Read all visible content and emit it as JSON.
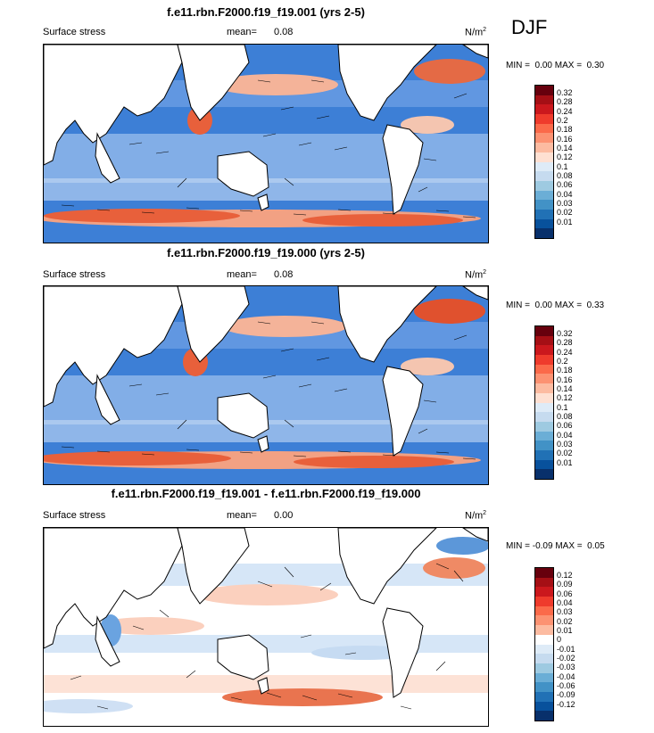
{
  "season": "DJF",
  "panels": [
    {
      "title": "f.e11.rbn.F2000.f19_f19.001 (yrs 2-5)",
      "variable": "Surface stress",
      "mean_label": "mean=",
      "mean": "0.08",
      "units": "N/m",
      "units_sup": "2",
      "min_label": "MIN =",
      "min": "0.00",
      "max_label": "MAX =",
      "max": "0.30",
      "colorbar_levels": [
        "0.32",
        "0.28",
        "0.24",
        "0.2",
        "0.18",
        "0.16",
        "0.14",
        "0.12",
        "0.1",
        "0.08",
        "0.06",
        "0.04",
        "0.03",
        "0.02",
        "0.01"
      ]
    },
    {
      "title": "f.e11.rbn.F2000.f19_f19.000 (yrs 2-5)",
      "variable": "Surface stress",
      "mean_label": "mean=",
      "mean": "0.08",
      "units": "N/m",
      "units_sup": "2",
      "min_label": "MIN =",
      "min": "0.00",
      "max_label": "MAX =",
      "max": "0.33",
      "colorbar_levels": [
        "0.32",
        "0.28",
        "0.24",
        "0.2",
        "0.18",
        "0.16",
        "0.14",
        "0.12",
        "0.1",
        "0.08",
        "0.06",
        "0.04",
        "0.03",
        "0.02",
        "0.01"
      ]
    },
    {
      "title": "f.e11.rbn.F2000.f19_f19.001 - f.e11.rbn.F2000.f19_f19.000",
      "variable": "Surface stress",
      "mean_label": "mean=",
      "mean": "0.00",
      "units": "N/m",
      "units_sup": "2",
      "min_label": "MIN =",
      "min": "-0.09",
      "max_label": "MAX =",
      "max": "0.05",
      "colorbar_levels": [
        "0.12",
        "0.09",
        "0.06",
        "0.04",
        "0.03",
        "0.02",
        "0.01",
        "0",
        "-0.01",
        "-0.02",
        "-0.03",
        "-0.04",
        "-0.06",
        "-0.09",
        "-0.12"
      ]
    }
  ],
  "colors": {
    "seq_scale": [
      "#67000d",
      "#a50f15",
      "#cb181d",
      "#ef3b2c",
      "#fb6a4a",
      "#fc9272",
      "#fcbba1",
      "#fee0d2",
      "#deebf7",
      "#c6dbef",
      "#9ecae1",
      "#6baed6",
      "#4292c6",
      "#2171b5",
      "#08519c",
      "#08306b"
    ],
    "diff_scale": [
      "#67000d",
      "#a50f15",
      "#cb181d",
      "#ef3b2c",
      "#fb6a4a",
      "#fc9272",
      "#fcbba1",
      "#ffffff",
      "#deebf7",
      "#c6dbef",
      "#9ecae1",
      "#6baed6",
      "#4292c6",
      "#2171b5",
      "#08519c",
      "#08306b"
    ]
  }
}
